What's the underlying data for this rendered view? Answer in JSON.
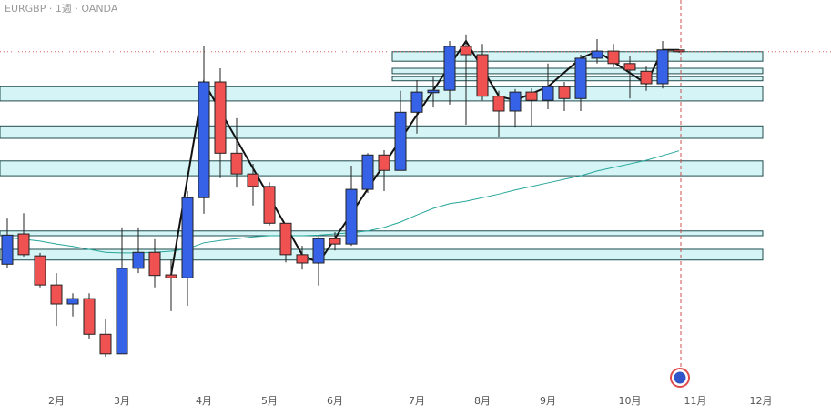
{
  "chart_data": {
    "type": "candlestick",
    "title": "EURGBP · 1週 · OANDA",
    "up_color": "#3562e6",
    "down_color": "#f05252",
    "ylim": [
      0.8139,
      0.8838
    ],
    "xticks": [
      {
        "value": 3,
        "label": "2月"
      },
      {
        "value": 7,
        "label": "3月"
      },
      {
        "value": 12,
        "label": "4月"
      },
      {
        "value": 16,
        "label": "5月"
      },
      {
        "value": 20,
        "label": "6月"
      },
      {
        "value": 25,
        "label": "7月"
      },
      {
        "value": 29,
        "label": "8月"
      },
      {
        "value": 33,
        "label": "9月"
      },
      {
        "value": 38,
        "label": "10月"
      },
      {
        "value": 42,
        "label": "11月"
      },
      {
        "value": 46,
        "label": "12月"
      }
    ],
    "open": [
      0.8393,
      0.8444,
      0.8407,
      0.8358,
      0.8326,
      0.8335,
      0.8275,
      0.8242,
      0.8386,
      0.8413,
      0.8375,
      0.837,
      0.8505,
      0.87,
      0.858,
      0.8545,
      0.8524,
      0.8462,
      0.8409,
      0.8395,
      0.8436,
      0.8427,
      0.8519,
      0.8577,
      0.8551,
      0.8649,
      0.8682,
      0.8686,
      0.876,
      0.8746,
      0.8676,
      0.8651,
      0.8683,
      0.8669,
      0.8692,
      0.8672,
      0.874,
      0.8752,
      0.8731,
      0.8718,
      0.8697,
      0.8754
    ],
    "high": [
      0.847,
      0.8479,
      0.8412,
      0.8378,
      0.8344,
      0.8344,
      0.8301,
      0.8455,
      0.8455,
      0.8435,
      0.8401,
      0.8516,
      0.8761,
      0.8723,
      0.8639,
      0.8562,
      0.8531,
      0.8462,
      0.8424,
      0.8439,
      0.8447,
      0.8559,
      0.858,
      0.8585,
      0.8685,
      0.8703,
      0.8708,
      0.8769,
      0.878,
      0.8764,
      0.8685,
      0.8688,
      0.8689,
      0.8731,
      0.87,
      0.8746,
      0.8772,
      0.8764,
      0.8743,
      0.8726,
      0.8769,
      0.8755
    ],
    "low": [
      0.8387,
      0.8406,
      0.8354,
      0.8289,
      0.8305,
      0.8268,
      0.8237,
      0.8242,
      0.8378,
      0.8354,
      0.8314,
      0.8323,
      0.8478,
      0.8538,
      0.8522,
      0.8492,
      0.8458,
      0.8396,
      0.8384,
      0.8357,
      0.8416,
      0.8424,
      0.8513,
      0.8516,
      0.8551,
      0.8613,
      0.8657,
      0.8662,
      0.8628,
      0.8669,
      0.8608,
      0.8623,
      0.8626,
      0.8654,
      0.8651,
      0.8651,
      0.8731,
      0.8725,
      0.8672,
      0.8685,
      0.8689,
      0.8749
    ],
    "close": [
      0.8442,
      0.8409,
      0.8358,
      0.8326,
      0.8335,
      0.8275,
      0.8242,
      0.8386,
      0.8413,
      0.8374,
      0.837,
      0.8505,
      0.87,
      0.858,
      0.8545,
      0.8524,
      0.8462,
      0.8409,
      0.8395,
      0.8436,
      0.8427,
      0.8519,
      0.8577,
      0.8551,
      0.8649,
      0.8683,
      0.8686,
      0.876,
      0.8746,
      0.8676,
      0.8651,
      0.8683,
      0.8669,
      0.8692,
      0.8672,
      0.874,
      0.8752,
      0.8731,
      0.872,
      0.8697,
      0.8754,
      0.8751
    ],
    "ma": {
      "color": "#26a69a",
      "values": [
        0.8438,
        0.8435,
        0.8432,
        0.8427,
        0.8423,
        0.8418,
        0.8413,
        0.8412,
        0.8412,
        0.8413,
        0.8415,
        0.8419,
        0.8429,
        0.8433,
        0.8436,
        0.8439,
        0.8441,
        0.8441,
        0.8441,
        0.8442,
        0.8444,
        0.8446,
        0.8449,
        0.8455,
        0.8464,
        0.8476,
        0.8487,
        0.8495,
        0.8499,
        0.8505,
        0.8511,
        0.8518,
        0.8524,
        0.853,
        0.8536,
        0.8542,
        0.855,
        0.8556,
        0.8562,
        0.8568,
        0.8576,
        0.8584
      ]
    },
    "zigzag": {
      "color": "#111111",
      "x": [
        10,
        12,
        18,
        19,
        28,
        30,
        31,
        33,
        35,
        36,
        39,
        40,
        41
      ],
      "values": [
        0.8375,
        0.87,
        0.8409,
        0.8395,
        0.8769,
        0.8676,
        0.8669,
        0.8692,
        0.874,
        0.8752,
        0.8697,
        0.8754,
        0.8754
      ]
    },
    "zones": [
      {
        "top": 0.8751,
        "bottom": 0.8735,
        "start": 24
      },
      {
        "top": 0.8723,
        "bottom": 0.8714,
        "start": 24
      },
      {
        "top": 0.8709,
        "bottom": 0.8702,
        "start": 24
      },
      {
        "top": 0.8692,
        "bottom": 0.8668
      },
      {
        "top": 0.8626,
        "bottom": 0.8605
      },
      {
        "top": 0.8567,
        "bottom": 0.8542
      },
      {
        "top": 0.8449,
        "bottom": 0.8441
      },
      {
        "top": 0.8418,
        "bottom": 0.84
      }
    ],
    "last_price": 0.8751
  }
}
